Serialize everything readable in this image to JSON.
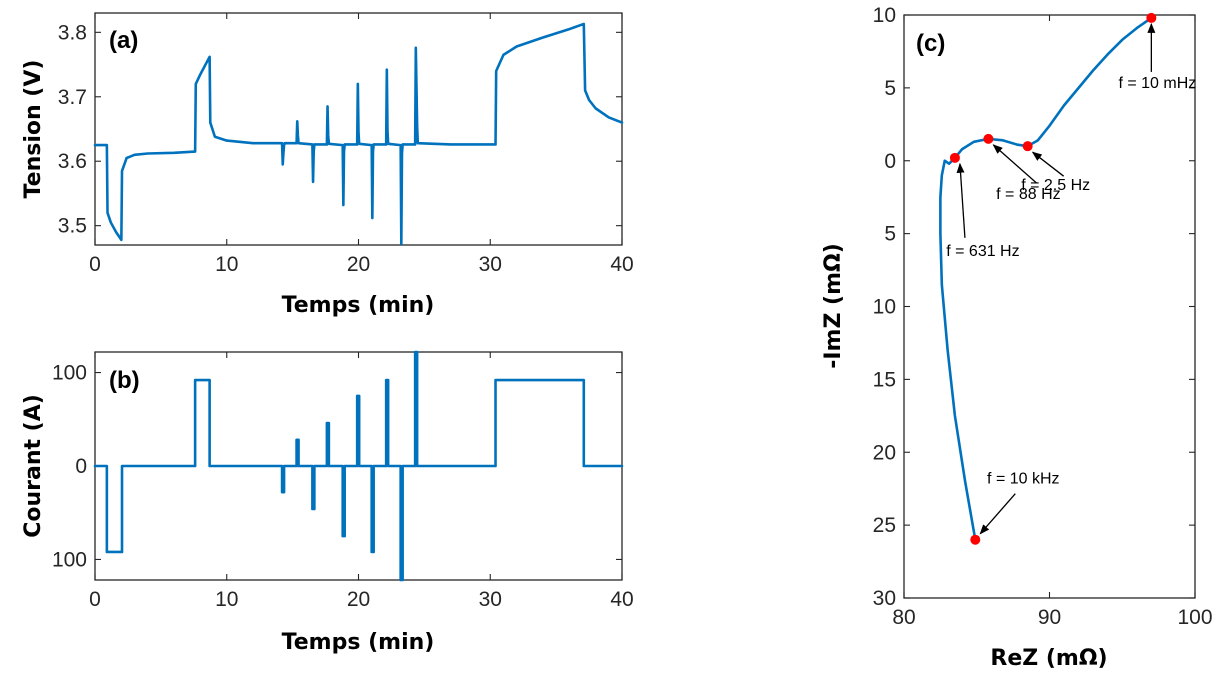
{
  "colors": {
    "series": "#0072BD",
    "marker": "#FF0000",
    "axis": "#262626"
  },
  "chart_data": [
    {
      "type": "line",
      "panel_label": "(a)",
      "xlabel": "Temps (min)",
      "ylabel": "Tension (V)",
      "xlim": [
        0,
        40
      ],
      "ylim": [
        3.47,
        3.83
      ],
      "xticks": [
        0,
        10,
        20,
        30,
        40
      ],
      "xtick_labels": [
        "0",
        "10",
        "20",
        "30",
        "40"
      ],
      "yticks": [
        3.5,
        3.6,
        3.7,
        3.8
      ],
      "ytick_labels": [
        "3.5",
        "3.6",
        "3.7",
        "3.8"
      ],
      "series": [
        {
          "x": [
            0,
            0.9,
            0.95,
            1.2,
            1.6,
            2.0,
            2.05,
            2.4,
            3,
            4,
            6,
            7.6,
            7.65,
            8.0,
            8.7,
            8.75,
            9.1,
            10,
            12,
            14.2,
            14.25,
            14.3,
            14.35,
            14.4,
            15.3,
            15.35,
            15.4,
            15.45,
            16.5,
            16.55,
            16.6,
            16.65,
            17.6,
            17.65,
            17.7,
            17.75,
            18.8,
            18.85,
            18.9,
            18.95,
            19.9,
            19.95,
            20.0,
            20.05,
            21.0,
            21.05,
            21.1,
            21.15,
            22.1,
            22.15,
            22.2,
            22.25,
            23.2,
            23.25,
            23.3,
            23.35,
            24.3,
            24.35,
            24.45,
            24.5,
            27,
            30.4,
            30.45,
            31,
            32,
            34,
            36,
            37.1,
            37.2,
            37.5,
            38,
            39,
            40
          ],
          "y": [
            3.625,
            3.625,
            3.52,
            3.505,
            3.49,
            3.478,
            3.585,
            3.605,
            3.61,
            3.612,
            3.613,
            3.615,
            3.72,
            3.735,
            3.762,
            3.66,
            3.638,
            3.632,
            3.628,
            3.628,
            3.595,
            3.612,
            3.625,
            3.628,
            3.628,
            3.662,
            3.64,
            3.628,
            3.626,
            3.568,
            3.615,
            3.626,
            3.626,
            3.685,
            3.64,
            3.627,
            3.625,
            3.532,
            3.615,
            3.626,
            3.626,
            3.72,
            3.645,
            3.627,
            3.625,
            3.512,
            3.615,
            3.626,
            3.626,
            3.742,
            3.648,
            3.627,
            3.625,
            3.472,
            3.612,
            3.626,
            3.626,
            3.776,
            3.655,
            3.628,
            3.626,
            3.626,
            3.74,
            3.765,
            3.778,
            3.792,
            3.805,
            3.813,
            3.71,
            3.695,
            3.682,
            3.668,
            3.66
          ]
        }
      ]
    },
    {
      "type": "line",
      "panel_label": "(b)",
      "xlabel": "Temps (min)",
      "ylabel": "Courant (A)",
      "xlim": [
        0,
        40
      ],
      "ylim": [
        -122,
        122
      ],
      "xticks": [
        0,
        10,
        20,
        30,
        40
      ],
      "xtick_labels": [
        "0",
        "10",
        "20",
        "30",
        "40"
      ],
      "yticks": [
        -100,
        0,
        100
      ],
      "ytick_labels": [
        "100",
        "0",
        "100"
      ],
      "series": [
        {
          "x": [
            0,
            0.9,
            0.9,
            2.05,
            2.05,
            7.6,
            7.6,
            8.7,
            8.7,
            14.2,
            14.2,
            14.35,
            14.35,
            15.3,
            15.3,
            15.45,
            15.45,
            16.5,
            16.5,
            16.65,
            16.65,
            17.6,
            17.6,
            17.75,
            17.75,
            18.8,
            18.8,
            18.95,
            18.95,
            19.9,
            19.9,
            20.05,
            20.05,
            21.0,
            21.0,
            21.15,
            21.15,
            22.1,
            22.1,
            22.25,
            22.25,
            23.2,
            23.2,
            23.35,
            23.35,
            24.3,
            24.3,
            24.45,
            24.45,
            30.4,
            30.4,
            37.1,
            37.1,
            40
          ],
          "y": [
            0,
            0,
            -92,
            -92,
            0,
            0,
            92,
            92,
            0,
            0,
            -28,
            -28,
            0,
            0,
            28,
            28,
            0,
            0,
            -46,
            -46,
            0,
            0,
            46,
            46,
            0,
            0,
            -75,
            -75,
            0,
            0,
            75,
            75,
            0,
            0,
            -92,
            -92,
            0,
            0,
            92,
            92,
            0,
            0,
            -122,
            -122,
            0,
            0,
            122,
            122,
            0,
            0,
            92,
            92,
            0,
            0
          ]
        }
      ]
    },
    {
      "type": "line",
      "panel_label": "(c)",
      "xlabel": "ReZ (mΩ)",
      "ylabel": "-ImZ (mΩ)",
      "xlim": [
        80,
        100
      ],
      "ylim": [
        -10,
        30
      ],
      "y_reversed": true,
      "xticks": [
        80,
        90,
        100
      ],
      "xtick_labels": [
        "80",
        "90",
        "100"
      ],
      "yticks": [
        -10,
        -5,
        0,
        5,
        10,
        15,
        20,
        25,
        30
      ],
      "ytick_labels": [
        "10",
        "5",
        "0",
        "5",
        "10",
        "15",
        "20",
        "25",
        "30"
      ],
      "series": [
        {
          "x": [
            84.9,
            84.2,
            83.5,
            83.0,
            82.6,
            82.5,
            82.5,
            82.6,
            82.8,
            83.1,
            83.5,
            84.0,
            84.8,
            85.8,
            86.8,
            87.8,
            88.5,
            89.2,
            90.0,
            91.0,
            92.0,
            93.0,
            94.0,
            95.0,
            96.0,
            97.0
          ],
          "y": [
            26.0,
            22.0,
            17.5,
            13.0,
            8.5,
            5.0,
            2.5,
            1.0,
            0.0,
            0.2,
            -0.2,
            -0.8,
            -1.3,
            -1.5,
            -1.4,
            -1.1,
            -1.0,
            -1.4,
            -2.4,
            -3.8,
            -5.0,
            -6.2,
            -7.3,
            -8.3,
            -9.1,
            -9.8
          ]
        }
      ],
      "markers": [
        {
          "label": "f = 10 kHz",
          "x": 84.9,
          "y": 26.0
        },
        {
          "label": "f = 631 Hz",
          "x": 83.5,
          "y": -0.2
        },
        {
          "label": "f = 88 Hz",
          "x": 85.8,
          "y": -1.5
        },
        {
          "label": "f = 2.5 Hz",
          "x": 88.5,
          "y": -1.0
        },
        {
          "label": "f = 10 mHz",
          "x": 97.0,
          "y": -9.8
        }
      ]
    }
  ]
}
